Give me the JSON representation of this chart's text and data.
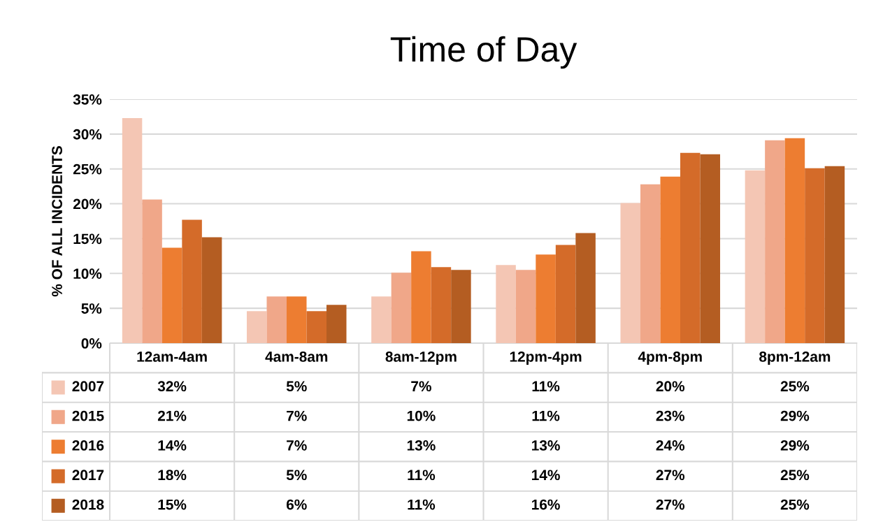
{
  "chart_data": {
    "type": "bar",
    "title": "Time of Day",
    "ylabel": "% OF ALL INCIDENTS",
    "categories": [
      "12am-4am",
      "4am-8am",
      "8am-12pm",
      "12pm-4pm",
      "4pm-8pm",
      "8pm-12am"
    ],
    "series": [
      {
        "name": "2007",
        "color": "#f4c6b4",
        "values": [
          32.3,
          4.6,
          6.7,
          11.2,
          20.1,
          24.8
        ],
        "value_labels": [
          "32%",
          "5%",
          "7%",
          "11%",
          "20%",
          "25%"
        ]
      },
      {
        "name": "2015",
        "color": "#f0a789",
        "values": [
          20.6,
          6.7,
          10.1,
          10.5,
          22.8,
          29.1
        ],
        "value_labels": [
          "21%",
          "7%",
          "10%",
          "11%",
          "23%",
          "29%"
        ]
      },
      {
        "name": "2016",
        "color": "#ed7d31",
        "values": [
          13.7,
          6.7,
          13.2,
          12.7,
          23.9,
          29.4
        ],
        "value_labels": [
          "14%",
          "7%",
          "13%",
          "13%",
          "24%",
          "29%"
        ]
      },
      {
        "name": "2017",
        "color": "#d46b29",
        "values": [
          17.7,
          4.6,
          10.9,
          14.1,
          27.3,
          25.1
        ],
        "value_labels": [
          "18%",
          "5%",
          "11%",
          "14%",
          "27%",
          "25%"
        ]
      },
      {
        "name": "2018",
        "color": "#b45d22",
        "values": [
          15.2,
          5.5,
          10.5,
          15.8,
          27.1,
          25.4
        ],
        "value_labels": [
          "15%",
          "6%",
          "11%",
          "16%",
          "27%",
          "25%"
        ]
      }
    ],
    "ylim": [
      0,
      35
    ],
    "yticks": [
      {
        "value": 0,
        "label": "0%"
      },
      {
        "value": 5,
        "label": "5%"
      },
      {
        "value": 10,
        "label": "10%"
      },
      {
        "value": 15,
        "label": "15%"
      },
      {
        "value": 20,
        "label": "20%"
      },
      {
        "value": 25,
        "label": "25%"
      },
      {
        "value": 30,
        "label": "30%"
      },
      {
        "value": 35,
        "label": "35%"
      }
    ],
    "grid": "y",
    "legend": "bottom"
  }
}
